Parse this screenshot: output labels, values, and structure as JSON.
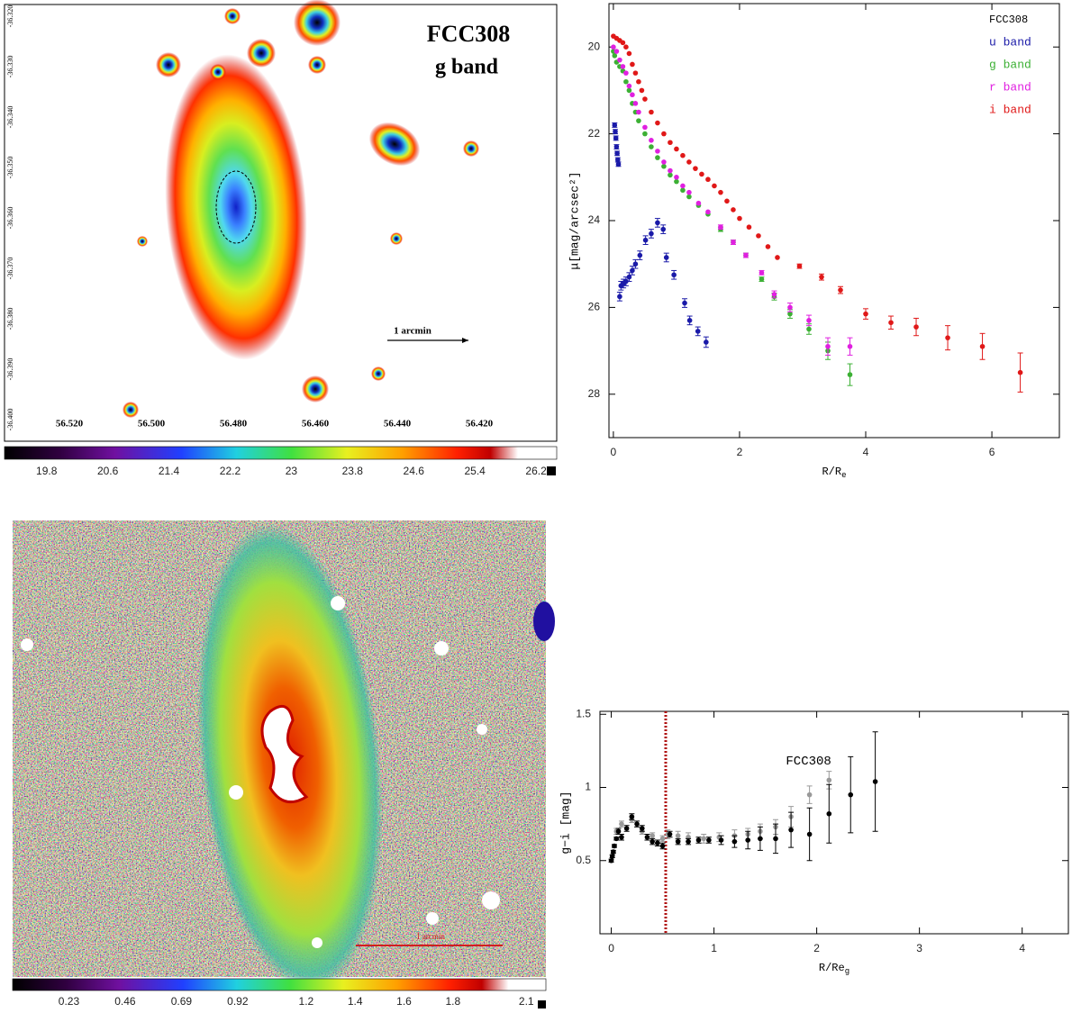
{
  "images": [
    {
      "title": "FCC308",
      "subtitle": "g band",
      "scale_label": "1 arcmin",
      "xtick_labels": [
        "56.520",
        "56.500",
        "56.480",
        "56.460",
        "56.440",
        "56.420"
      ],
      "ytick_labels": [
        "-36.320",
        "-36.330",
        "-36.340",
        "-36.350",
        "-36.360",
        "-36.370",
        "-36.380",
        "-36.390",
        "-36.400"
      ],
      "clim": [
        19.25,
        26.47
      ],
      "colorbar_ticks": [
        19.8,
        20.6,
        21.4,
        22.2,
        23,
        23.8,
        24.6,
        25.4,
        26.2
      ]
    },
    {
      "scale_label": "1 arcmin",
      "clim": [
        0,
        2.18
      ],
      "colorbar_ticks": [
        0.23,
        0.46,
        0.69,
        0.92,
        1.2,
        1.4,
        1.6,
        1.8,
        2.1
      ]
    }
  ],
  "chart_data": [
    {
      "type": "scatter",
      "ylabel": "μ[mag/arcsec²]",
      "xlabel": "R/R",
      "xlabel_sub": "e",
      "legend_title": "FCC308",
      "xlim": [
        -0.07,
        7.07
      ],
      "ylim": [
        29,
        19
      ],
      "xticks": [
        0,
        2,
        4,
        6
      ],
      "yticks": [
        20,
        22,
        24,
        26,
        28
      ],
      "series": [
        {
          "name": "u band",
          "color": "#1a1aa8",
          "x": [
            0.02,
            0.03,
            0.04,
            0.05,
            0.06,
            0.07,
            0.08,
            0.1,
            0.12,
            0.16,
            0.2,
            0.25,
            0.3,
            0.35,
            0.42,
            0.51,
            0.6,
            0.7,
            0.79,
            0.84,
            0.96,
            1.13,
            1.21,
            1.34,
            1.47
          ],
          "values": [
            21.8,
            21.95,
            22.1,
            22.3,
            22.45,
            22.6,
            22.7,
            25.75,
            25.5,
            25.45,
            25.4,
            25.3,
            25.15,
            25.0,
            24.8,
            24.45,
            24.3,
            24.05,
            24.2,
            24.85,
            25.25,
            25.9,
            26.3,
            26.55,
            26.8
          ],
          "errors": [
            0.05,
            0.05,
            0.05,
            0.05,
            0.05,
            0.05,
            0.05,
            0.1,
            0.1,
            0.1,
            0.1,
            0.1,
            0.1,
            0.1,
            0.1,
            0.1,
            0.1,
            0.1,
            0.1,
            0.1,
            0.1,
            0.1,
            0.1,
            0.1,
            0.12
          ]
        },
        {
          "name": "g band",
          "color": "#3cb034",
          "x": [
            0,
            0.02,
            0.05,
            0.1,
            0.15,
            0.2,
            0.25,
            0.3,
            0.35,
            0.4,
            0.5,
            0.6,
            0.7,
            0.8,
            0.9,
            1.0,
            1.1,
            1.2,
            1.35,
            1.5,
            1.7,
            1.9,
            2.1,
            2.35,
            2.55,
            2.8,
            3.1,
            3.4,
            3.75
          ],
          "values": [
            20.1,
            20.2,
            20.35,
            20.45,
            20.55,
            20.8,
            21.0,
            21.3,
            21.5,
            21.7,
            22.0,
            22.3,
            22.55,
            22.75,
            22.95,
            23.1,
            23.3,
            23.45,
            23.65,
            23.85,
            24.2,
            24.5,
            24.8,
            25.35,
            25.75,
            26.15,
            26.5,
            27.0,
            27.55
          ],
          "errors": [
            0,
            0,
            0,
            0,
            0,
            0,
            0,
            0,
            0,
            0,
            0,
            0,
            0,
            0,
            0,
            0,
            0,
            0,
            0,
            0,
            0.05,
            0.05,
            0.05,
            0.05,
            0.08,
            0.1,
            0.12,
            0.2,
            0.25
          ]
        },
        {
          "name": "r band",
          "color": "#e020e0",
          "x": [
            0,
            0.05,
            0.1,
            0.15,
            0.2,
            0.25,
            0.3,
            0.35,
            0.4,
            0.5,
            0.6,
            0.7,
            0.8,
            0.9,
            1.0,
            1.1,
            1.2,
            1.35,
            1.5,
            1.7,
            1.9,
            2.1,
            2.35,
            2.55,
            2.8,
            3.1,
            3.4,
            3.75
          ],
          "values": [
            20.0,
            20.1,
            20.3,
            20.45,
            20.6,
            20.9,
            21.1,
            21.3,
            21.5,
            21.85,
            22.15,
            22.4,
            22.65,
            22.85,
            23.0,
            23.2,
            23.35,
            23.6,
            23.8,
            24.15,
            24.5,
            24.8,
            25.2,
            25.7,
            26.0,
            26.3,
            26.9,
            26.9
          ],
          "errors": [
            0,
            0,
            0,
            0,
            0,
            0,
            0,
            0,
            0,
            0,
            0,
            0,
            0,
            0,
            0,
            0,
            0,
            0,
            0,
            0.05,
            0.05,
            0.05,
            0.05,
            0.08,
            0.1,
            0.12,
            0.2,
            0.2
          ]
        },
        {
          "name": "i band",
          "color": "#e01818",
          "x": [
            0,
            0.05,
            0.1,
            0.15,
            0.2,
            0.25,
            0.3,
            0.35,
            0.4,
            0.45,
            0.5,
            0.6,
            0.7,
            0.8,
            0.9,
            1.0,
            1.1,
            1.2,
            1.3,
            1.4,
            1.5,
            1.6,
            1.7,
            1.8,
            1.9,
            2.0,
            2.15,
            2.3,
            2.45,
            2.6,
            2.95,
            3.3,
            3.6,
            4.0,
            4.4,
            4.8,
            5.3,
            5.85,
            6.45
          ],
          "values": [
            19.75,
            19.8,
            19.85,
            19.9,
            20.0,
            20.15,
            20.4,
            20.6,
            20.8,
            21.0,
            21.2,
            21.5,
            21.75,
            22.0,
            22.2,
            22.35,
            22.5,
            22.65,
            22.8,
            22.93,
            23.05,
            23.2,
            23.35,
            23.55,
            23.75,
            23.95,
            24.15,
            24.35,
            24.6,
            24.85,
            25.05,
            25.3,
            25.6,
            26.15,
            26.35,
            26.45,
            26.7,
            26.9,
            27.5
          ],
          "errors": [
            0,
            0,
            0,
            0,
            0,
            0,
            0,
            0,
            0,
            0,
            0,
            0,
            0,
            0,
            0,
            0,
            0,
            0,
            0,
            0,
            0,
            0,
            0,
            0,
            0,
            0,
            0,
            0,
            0,
            0,
            0.05,
            0.07,
            0.08,
            0.12,
            0.15,
            0.2,
            0.28,
            0.3,
            0.45
          ]
        }
      ]
    },
    {
      "type": "scatter",
      "ylabel": "g−i [mag]",
      "xlabel": "R/Re",
      "xlabel_sub": "g",
      "annotation": "FCC308",
      "xlim": [
        -0.11,
        4.45
      ],
      "ylim": [
        0,
        1.52
      ],
      "xticks": [
        0,
        1,
        2,
        3,
        4
      ],
      "yticks": [
        0.5,
        1,
        1.5
      ],
      "vline": {
        "value": 0.53,
        "color": "#b01010"
      },
      "series": [
        {
          "color": "#999999",
          "x": [
            0.05,
            0.1,
            0.2,
            0.3,
            0.4,
            0.5,
            0.55,
            0.65,
            0.75,
            0.9,
            1.05,
            1.2,
            1.33,
            1.45,
            1.6,
            1.75,
            1.93,
            2.12
          ],
          "values": [
            0.7,
            0.75,
            0.78,
            0.7,
            0.67,
            0.65,
            0.68,
            0.67,
            0.66,
            0.65,
            0.66,
            0.67,
            0.68,
            0.7,
            0.73,
            0.8,
            0.95,
            1.05
          ],
          "errors": [
            0.02,
            0.02,
            0.02,
            0.02,
            0.02,
            0.02,
            0.03,
            0.03,
            0.03,
            0.03,
            0.03,
            0.04,
            0.04,
            0.05,
            0.05,
            0.07,
            0.06,
            0.06
          ]
        },
        {
          "color": "#000000",
          "x": [
            0.0,
            0.01,
            0.02,
            0.03,
            0.05,
            0.07,
            0.1,
            0.15,
            0.2,
            0.25,
            0.3,
            0.35,
            0.4,
            0.45,
            0.5,
            0.57,
            0.65,
            0.75,
            0.85,
            0.95,
            1.07,
            1.2,
            1.33,
            1.45,
            1.6,
            1.75,
            1.93,
            2.12,
            2.33,
            2.57
          ],
          "values": [
            0.5,
            0.53,
            0.56,
            0.6,
            0.65,
            0.7,
            0.66,
            0.72,
            0.8,
            0.75,
            0.72,
            0.66,
            0.63,
            0.62,
            0.6,
            0.68,
            0.63,
            0.63,
            0.64,
            0.64,
            0.64,
            0.63,
            0.64,
            0.65,
            0.65,
            0.71,
            0.68,
            0.82,
            0.95,
            1.04
          ],
          "errors": [
            0.01,
            0.01,
            0.01,
            0.01,
            0.01,
            0.02,
            0.02,
            0.02,
            0.02,
            0.02,
            0.02,
            0.02,
            0.02,
            0.02,
            0.02,
            0.02,
            0.02,
            0.02,
            0.02,
            0.02,
            0.03,
            0.04,
            0.06,
            0.08,
            0.1,
            0.12,
            0.18,
            0.2,
            0.26,
            0.34
          ]
        }
      ]
    }
  ]
}
